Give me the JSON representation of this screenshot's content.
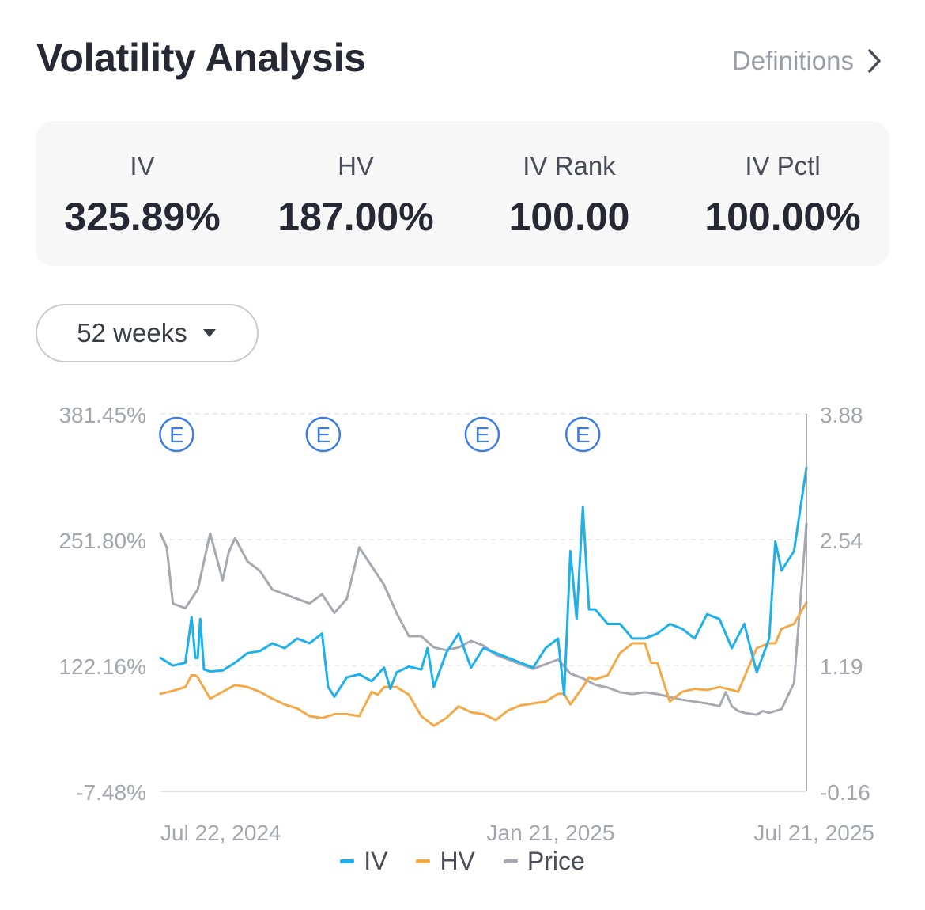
{
  "header": {
    "title": "Volatility Analysis",
    "definitions_label": "Definitions"
  },
  "stats": [
    {
      "label": "IV",
      "value": "325.89%"
    },
    {
      "label": "HV",
      "value": "187.00%"
    },
    {
      "label": "IV Rank",
      "value": "100.00"
    },
    {
      "label": "IV Pctl",
      "value": "100.00%"
    }
  ],
  "period_selector": {
    "value": "52 weeks"
  },
  "colors": {
    "iv": "#1eb0ea",
    "hv": "#f3a948",
    "price": "#a7a9b2",
    "earnings": "#3d7de4"
  },
  "chart_data": {
    "type": "line",
    "left_axis": {
      "ticks": [
        "381.45%",
        "251.80%",
        "122.16%",
        "-7.48%"
      ],
      "range": [
        -7.48,
        381.45
      ]
    },
    "right_axis": {
      "ticks": [
        "3.88",
        "2.54",
        "1.19",
        "-0.16"
      ],
      "range": [
        -0.16,
        3.88
      ]
    },
    "x_ticks": [
      "Jul 22, 2024",
      "Jan 21, 2025",
      "Jul 21, 2025"
    ],
    "x_range": [
      0,
      52
    ],
    "earnings_marker": "E",
    "earnings_weeks": [
      1.3,
      13.1,
      25.9,
      34.0
    ],
    "legend": [
      "IV",
      "HV",
      "Price"
    ],
    "series": [
      {
        "name": "IV",
        "axis": "left",
        "x": [
          0,
          1,
          2,
          2.5,
          2.8,
          3,
          3.2,
          3.5,
          4,
          5,
          6,
          7,
          8,
          9,
          10,
          11,
          12,
          13,
          13.5,
          14,
          15,
          16,
          17,
          18,
          18.5,
          19,
          20,
          21,
          21.5,
          22,
          23,
          24,
          25,
          26,
          27,
          28,
          29,
          30,
          31,
          32,
          32.5,
          33,
          33.5,
          34,
          34.5,
          35,
          36,
          37,
          38,
          39,
          40,
          41,
          42,
          43,
          44,
          45,
          46,
          47,
          48,
          49,
          49.5,
          50,
          51,
          52
        ],
        "y": [
          130,
          122,
          125,
          172,
          130,
          130,
          170,
          118,
          116,
          117,
          125,
          135,
          137,
          145,
          140,
          150,
          145,
          155,
          100,
          90,
          110,
          113,
          106,
          120,
          98,
          115,
          121,
          118,
          140,
          100,
          135,
          155,
          120,
          140,
          135,
          130,
          125,
          120,
          140,
          150,
          92,
          240,
          170,
          285,
          180,
          180,
          165,
          165,
          150,
          150,
          155,
          165,
          160,
          150,
          175,
          170,
          140,
          165,
          115,
          150,
          250,
          220,
          240,
          325.89
        ]
      },
      {
        "name": "HV",
        "axis": "left",
        "x": [
          0,
          1,
          2,
          2.5,
          2.8,
          3,
          4,
          5,
          6,
          7,
          8,
          9,
          10,
          11,
          12,
          13,
          14,
          15,
          16,
          17,
          17.5,
          18,
          19,
          20,
          21,
          22,
          23,
          24,
          25,
          26,
          27,
          28,
          29,
          30,
          31,
          32,
          32.5,
          33,
          34,
          34.5,
          35,
          36,
          37,
          38,
          39,
          39.5,
          40,
          41,
          42,
          43,
          44,
          45,
          46,
          46.5,
          47,
          48,
          49,
          49.5,
          50,
          51,
          52
        ],
        "y": [
          93,
          96,
          100,
          112,
          112,
          110,
          88,
          95,
          102,
          100,
          95,
          88,
          82,
          78,
          70,
          68,
          72,
          72,
          70,
          95,
          92,
          100,
          100,
          92,
          70,
          60,
          68,
          80,
          74,
          72,
          66,
          76,
          81,
          83,
          85,
          93,
          93,
          82,
          100,
          110,
          108,
          112,
          135,
          145,
          145,
          125,
          125,
          85,
          95,
          98,
          97,
          100,
          97,
          95,
          110,
          140,
          145,
          145,
          160,
          165,
          187
        ]
      },
      {
        "name": "Price",
        "axis": "right",
        "x": [
          0,
          0.5,
          1,
          2,
          3,
          4,
          5,
          5.5,
          6,
          7,
          8,
          9,
          10,
          11,
          12,
          13,
          14,
          15,
          16,
          17,
          18,
          19,
          20,
          21,
          22,
          23,
          24,
          25,
          26,
          27,
          28,
          29,
          30,
          31,
          32,
          33,
          34,
          35,
          36,
          37,
          38,
          39,
          40,
          41,
          42,
          43,
          44,
          45,
          45.5,
          46,
          46.5,
          47,
          48,
          48.5,
          49,
          50,
          51,
          52
        ],
        "y": [
          2.6,
          2.45,
          1.85,
          1.8,
          2.0,
          2.6,
          2.1,
          2.4,
          2.55,
          2.3,
          2.2,
          2.0,
          1.95,
          1.9,
          1.85,
          1.95,
          1.75,
          1.9,
          2.45,
          2.25,
          2.05,
          1.75,
          1.5,
          1.5,
          1.38,
          1.35,
          1.38,
          1.45,
          1.4,
          1.3,
          1.25,
          1.2,
          1.15,
          1.2,
          1.25,
          1.1,
          1.05,
          0.98,
          0.95,
          0.9,
          0.88,
          0.9,
          0.88,
          0.85,
          0.82,
          0.8,
          0.78,
          0.75,
          0.9,
          0.75,
          0.7,
          0.68,
          0.66,
          0.7,
          0.68,
          0.72,
          1.0,
          2.7
        ]
      }
    ]
  }
}
